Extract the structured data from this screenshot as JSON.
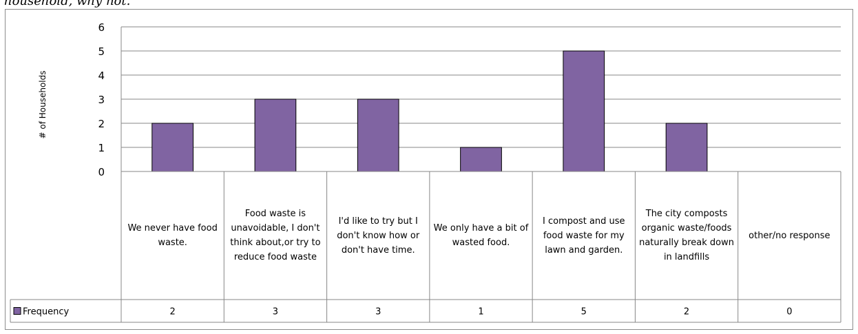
{
  "caption": "household, why not.",
  "chart_data": {
    "type": "bar",
    "title": "",
    "xlabel": "",
    "ylabel": "# of Households",
    "ylim": [
      0,
      6
    ],
    "yticks": [
      0,
      1,
      2,
      3,
      4,
      5,
      6
    ],
    "grid": true,
    "legend": "data table",
    "categories": [
      "We never have food waste.",
      "Food waste is unavoidable, I don't think about,or try to reduce food waste",
      "I'd like to try but I don't know how or don't have time.",
      "We only have a bit of wasted food.",
      "I compost and use food waste for my lawn and garden.",
      "The city composts organic waste/foods naturally break down in landfills",
      "other/no response"
    ],
    "series": [
      {
        "name": "Frequency",
        "values": [
          2,
          3,
          3,
          1,
          5,
          2,
          0
        ],
        "color": "#8064a2"
      }
    ]
  }
}
